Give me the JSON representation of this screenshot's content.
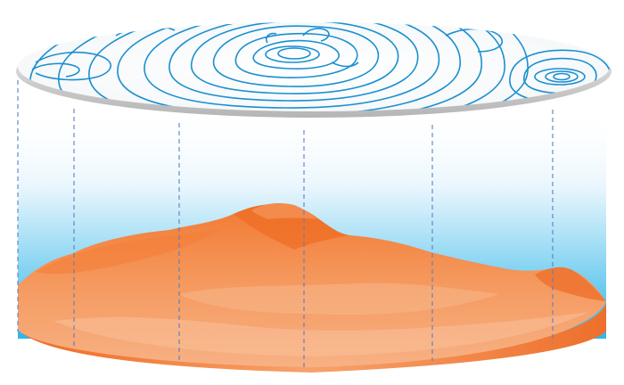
{
  "diagram": {
    "subject": "contour-map-projection-of-terrain",
    "colors": {
      "contour_line": "#1a8fd0",
      "disc_edge_light": "#f2f2f2",
      "disc_edge_dark": "#bdbdbd",
      "sky_top": "#ffffff",
      "sky_bottom": "#33b9ea",
      "terrain_light": "#f7a66e",
      "terrain_mid": "#f07f3c",
      "terrain_dark": "#e5621f",
      "guide_line": "#5b7fbf"
    },
    "features": [
      {
        "name": "main-summit",
        "type": "peak"
      },
      {
        "name": "secondary-summit",
        "type": "peak"
      }
    ],
    "projection_guides": 6
  }
}
